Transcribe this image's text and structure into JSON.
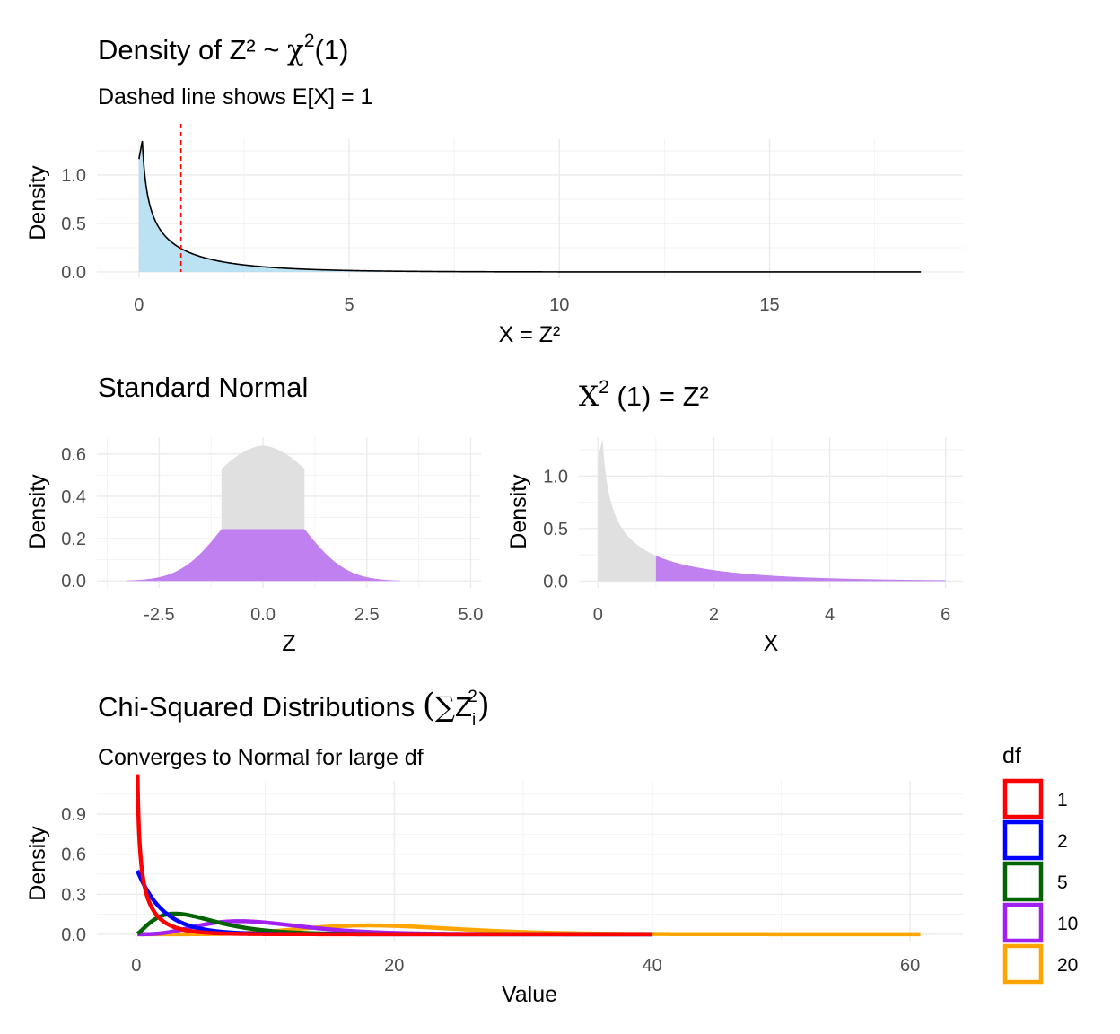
{
  "chart_data": [
    {
      "id": "p1",
      "type": "area",
      "title": "Density of Z² ~ χ2(1)",
      "title_parts": {
        "main": "Density of Z² ~ ",
        "chi": "χ",
        "sup": "2",
        "arg": "(1)"
      },
      "subtitle": "Dashed line shows E[X] = 1",
      "xlabel": "X = Z²",
      "ylabel": "Density",
      "xlim": [
        -1,
        19.6
      ],
      "ylim": [
        -0.065,
        1.37
      ],
      "x_ticks": [
        0,
        5,
        10,
        15
      ],
      "x_tick_labels": [
        "0",
        "5",
        "10",
        "15"
      ],
      "y_ticks": [
        0.0,
        0.5,
        1.0
      ],
      "y_tick_labels": [
        "0.0",
        "0.5",
        "1.0"
      ],
      "fill_range": [
        0,
        8
      ],
      "x_max": 18.6,
      "vline": 1,
      "peak": {
        "x": 0.08,
        "y": 1.34
      },
      "colors": {
        "fill": "#b3dff2",
        "line": "#000000",
        "vline": "#ff0000"
      },
      "grid": true
    },
    {
      "id": "p2",
      "type": "area",
      "title": "Standard Normal",
      "xlabel": "Z",
      "ylabel": "Density",
      "xlim": [
        -4.0,
        5.25
      ],
      "ylim": [
        -0.033,
        0.68
      ],
      "x_ticks": [
        -2.5,
        0.0,
        2.5,
        5.0
      ],
      "x_tick_labels": [
        "-2.5",
        "0.0",
        "2.5",
        "5.0"
      ],
      "y_ticks": [
        0.0,
        0.2,
        0.4,
        0.6
      ],
      "y_tick_labels": [
        "0.0",
        "0.2",
        "0.4",
        "0.6"
      ],
      "z_range": [
        -3.3,
        3.3
      ],
      "cut": 1,
      "inner_peak": 0.64,
      "inner_edge": 0.53,
      "outer_peak": 0.245,
      "colors": {
        "inner": "#e0e0e0",
        "outer": "#c080f0"
      },
      "grid": true
    },
    {
      "id": "p3",
      "type": "area",
      "title": "X2 (1) = Z²",
      "title_parts": {
        "chi": "X",
        "sup": "2",
        "rest": " (1) = Z²"
      },
      "xlabel": "X",
      "ylabel": "Density",
      "xlim": [
        -0.33,
        6.3
      ],
      "ylim": [
        -0.065,
        1.37
      ],
      "x_ticks": [
        0,
        2,
        4,
        6
      ],
      "x_tick_labels": [
        "0",
        "2",
        "4",
        "6"
      ],
      "y_ticks": [
        0.0,
        0.5,
        1.0
      ],
      "y_tick_labels": [
        "0.0",
        "0.5",
        "1.0"
      ],
      "x_max": 6,
      "cut": 1,
      "peak": {
        "x": 0.08,
        "y": 1.34
      },
      "colors": {
        "inner": "#e0e0e0",
        "outer": "#c080f0"
      },
      "grid": true
    },
    {
      "id": "p4",
      "type": "line",
      "title": "Chi-Squared Distributions (∑Zi2)",
      "title_parts": {
        "main": "Chi-Squared Distributions ",
        "open": "(",
        "sum": "∑",
        "z": "Z",
        "sub": "i",
        "sup": "2",
        "close": ")"
      },
      "subtitle": "Converges to Normal for large df",
      "xlabel": "Value",
      "ylabel": "Density",
      "xlim": [
        -3.05,
        64.1
      ],
      "ylim": [
        -0.055,
        1.15
      ],
      "x_ticks": [
        0,
        20,
        40,
        60
      ],
      "x_tick_labels": [
        "0",
        "20",
        "40",
        "60"
      ],
      "y_ticks": [
        0.0,
        0.3,
        0.6,
        0.9
      ],
      "y_tick_labels": [
        "0.0",
        "0.3",
        "0.6",
        "0.9"
      ],
      "legend": {
        "title": "df",
        "position": "right"
      },
      "series": [
        {
          "name": "1",
          "df": 1,
          "x_range": [
            0.1,
            40
          ],
          "color": "#ff0000"
        },
        {
          "name": "2",
          "df": 2,
          "x_range": [
            0.1,
            40
          ],
          "color": "#0000ff"
        },
        {
          "name": "5",
          "df": 5,
          "x_range": [
            0.1,
            40
          ],
          "color": "#006400"
        },
        {
          "name": "10",
          "df": 10,
          "x_range": [
            0.1,
            40
          ],
          "color": "#a020f0"
        },
        {
          "name": "20",
          "df": 20,
          "x_range": [
            0.1,
            60.8
          ],
          "color": "#ffa500"
        }
      ],
      "grid": true
    }
  ]
}
